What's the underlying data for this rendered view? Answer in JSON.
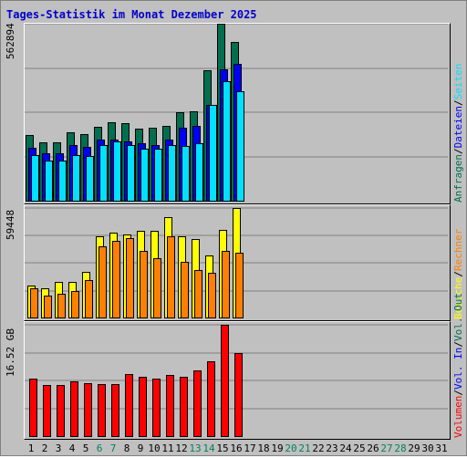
{
  "title": "Tages-Statistik im Monat Dezember 2025",
  "chart_data": [
    {
      "type": "bar",
      "panel": "requests",
      "ymax_label": "562894",
      "ylim": [
        0,
        562894
      ],
      "categories": [
        "1",
        "2",
        "3",
        "4",
        "5",
        "6",
        "7",
        "8",
        "9",
        "10",
        "11",
        "12",
        "13",
        "14",
        "15",
        "16",
        "17",
        "18",
        "19",
        "20",
        "21",
        "22",
        "23",
        "24",
        "25",
        "26",
        "27",
        "28",
        "29",
        "30",
        "31"
      ],
      "series": [
        {
          "name": "Anfragen",
          "color": "#006f4f",
          "values": [
            210000,
            188000,
            188000,
            218000,
            213000,
            236000,
            250000,
            248000,
            230000,
            233000,
            240000,
            283000,
            285000,
            415000,
            562894,
            505000,
            null,
            null,
            null,
            null,
            null,
            null,
            null,
            null,
            null,
            null,
            null,
            null,
            null,
            null,
            null
          ]
        },
        {
          "name": "Dateien",
          "color": "#0000ff",
          "values": [
            170000,
            153000,
            153000,
            178000,
            173000,
            195000,
            195000,
            190000,
            185000,
            180000,
            195000,
            235000,
            240000,
            305000,
            420000,
            435000,
            null,
            null,
            null,
            null,
            null,
            null,
            null,
            null,
            null,
            null,
            null,
            null,
            null,
            null,
            null
          ]
        },
        {
          "name": "Seiten",
          "color": "#00e0ff",
          "values": [
            148000,
            130000,
            130000,
            148000,
            145000,
            180000,
            190000,
            180000,
            168000,
            168000,
            178000,
            175000,
            185000,
            305000,
            380000,
            348000,
            null,
            null,
            null,
            null,
            null,
            null,
            null,
            null,
            null,
            null,
            null,
            null,
            null,
            null,
            null
          ]
        }
      ]
    },
    {
      "type": "bar",
      "panel": "visits",
      "ymax_label": "59448",
      "ylim": [
        0,
        59448
      ],
      "categories": [
        "1",
        "2",
        "3",
        "4",
        "5",
        "6",
        "7",
        "8",
        "9",
        "10",
        "11",
        "12",
        "13",
        "14",
        "15",
        "16",
        "17",
        "18",
        "19",
        "20",
        "21",
        "22",
        "23",
        "24",
        "25",
        "26",
        "27",
        "28",
        "29",
        "30",
        "31"
      ],
      "series": [
        {
          "name": "Besuche",
          "color": "#ffff00",
          "values": [
            17500,
            16000,
            19500,
            19500,
            25000,
            44000,
            46000,
            45000,
            47000,
            47000,
            54500,
            44000,
            42500,
            34000,
            47500,
            59448,
            null,
            null,
            null,
            null,
            null,
            null,
            null,
            null,
            null,
            null,
            null,
            null,
            null,
            null,
            null
          ]
        },
        {
          "name": "Rechner",
          "color": "#ff8000",
          "values": [
            16000,
            12500,
            13500,
            14500,
            20500,
            39000,
            42000,
            43000,
            36500,
            32500,
            44000,
            30500,
            26000,
            24500,
            36500,
            35500,
            null,
            null,
            null,
            null,
            null,
            null,
            null,
            null,
            null,
            null,
            null,
            null,
            null,
            null,
            null
          ]
        }
      ]
    },
    {
      "type": "bar",
      "panel": "volume",
      "ymax_label": "16.52 GB",
      "ylim": [
        0,
        16.52
      ],
      "categories": [
        "1",
        "2",
        "3",
        "4",
        "5",
        "6",
        "7",
        "8",
        "9",
        "10",
        "11",
        "12",
        "13",
        "14",
        "15",
        "16",
        "17",
        "18",
        "19",
        "20",
        "21",
        "22",
        "23",
        "24",
        "25",
        "26",
        "27",
        "28",
        "29",
        "30",
        "31"
      ],
      "series": [
        {
          "name": "Volumen",
          "color": "#ff0000",
          "values": [
            8.6,
            7.7,
            7.7,
            8.2,
            7.9,
            7.8,
            7.8,
            9.3,
            8.8,
            8.6,
            9.2,
            8.9,
            9.8,
            11.2,
            16.52,
            12.3,
            null,
            null,
            null,
            null,
            null,
            null,
            null,
            null,
            null,
            null,
            null,
            null,
            null,
            null,
            null
          ]
        }
      ]
    }
  ],
  "legend": {
    "top": [
      {
        "text": "Anfragen",
        "color": "#006f4f"
      },
      {
        "text": "Dateien",
        "color": "#0000ff"
      },
      {
        "text": "Seiten",
        "color": "#00e0ff"
      }
    ],
    "middle": [
      {
        "text": "Besuche",
        "color": "#ffff00"
      },
      {
        "text": "Rechner",
        "color": "#ff8000"
      }
    ],
    "bottom": [
      {
        "text": "Volumen",
        "color": "#ff0000"
      },
      {
        "text": "Vol. In",
        "color": "#0000ff"
      },
      {
        "text": "Vol. Out",
        "color": "#006f4f"
      }
    ]
  },
  "weekend_days": [
    "6",
    "7",
    "13",
    "14",
    "20",
    "21",
    "27",
    "28"
  ],
  "colors": {
    "weekday_label": "#000000",
    "weekend_label": "#00805f"
  }
}
